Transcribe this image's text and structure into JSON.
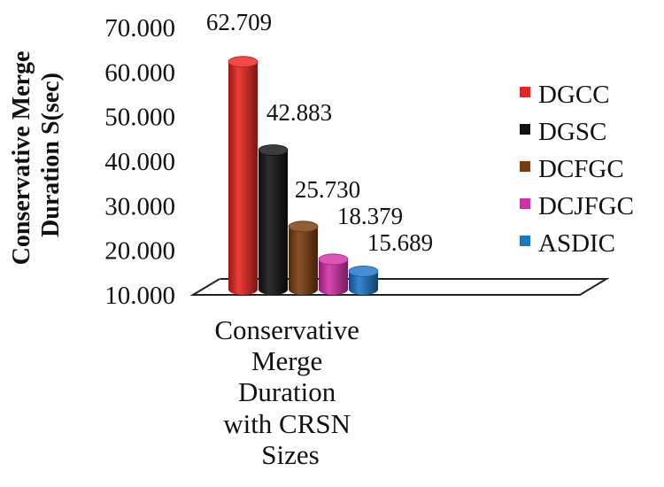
{
  "chart_data": {
    "type": "bar",
    "title": "",
    "ylabel": "Conservative Merge Duration S(sec)",
    "ylabel_lines": [
      "Conservative Merge",
      "Duration S(sec)"
    ],
    "xlabel": "",
    "categories": [
      "Conservative Merge Duration with CRSN Sizes"
    ],
    "category_lines": [
      "Conservative",
      "Merge",
      "Duration",
      "with CRSN",
      "Sizes"
    ],
    "ylim": [
      10,
      70
    ],
    "yticks": [
      "10.000",
      "20.000",
      "30.000",
      "40.000",
      "50.000",
      "60.000",
      "70.000"
    ],
    "legend_position": "right",
    "series": [
      {
        "name": "DGCC",
        "values": [
          62.709
        ],
        "label": "62.709",
        "color": "#e8231f"
      },
      {
        "name": "DGSC",
        "values": [
          42.883
        ],
        "label": "42.883",
        "color": "#111111"
      },
      {
        "name": "DCFGC",
        "values": [
          25.73
        ],
        "label": "25.730",
        "color": "#7a3b0f"
      },
      {
        "name": "DCJFGC",
        "values": [
          18.379
        ],
        "label": "18.379",
        "color": "#d42fa8"
      },
      {
        "name": "ASDIC",
        "values": [
          15.689
        ],
        "label": "15.689",
        "color": "#1c75c9"
      }
    ]
  }
}
